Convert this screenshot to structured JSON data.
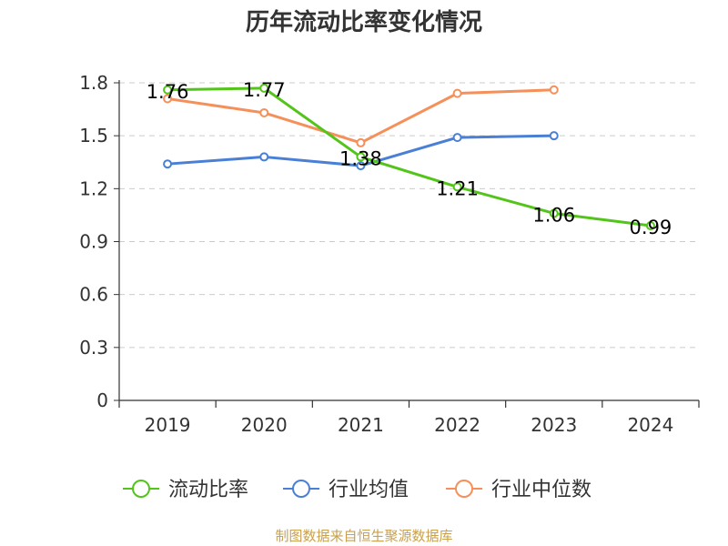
{
  "chart_data": {
    "type": "line",
    "title": "历年流动比率变化情况",
    "categories": [
      "2019",
      "2020",
      "2021",
      "2022",
      "2023",
      "2024"
    ],
    "ylim": [
      0,
      1.8
    ],
    "yticks": [
      "0",
      "0.3",
      "0.6",
      "0.9",
      "1.2",
      "1.5",
      "1.8"
    ],
    "grid": true,
    "legend_position": "bottom",
    "series": [
      {
        "name": "流动比率",
        "color": "#52c41a",
        "values": [
          1.76,
          1.77,
          1.38,
          1.21,
          1.06,
          0.99
        ],
        "labels": [
          "1.76",
          "1.77",
          "1.38",
          "1.21",
          "1.06",
          "0.99"
        ]
      },
      {
        "name": "行业均值",
        "color": "#4a7fd6",
        "values": [
          1.34,
          1.38,
          1.33,
          1.49,
          1.5,
          null
        ]
      },
      {
        "name": "行业中位数",
        "color": "#f5905a",
        "values": [
          1.71,
          1.63,
          1.46,
          1.74,
          1.76,
          null
        ]
      }
    ]
  },
  "source": "制图数据来自恒生聚源数据库"
}
